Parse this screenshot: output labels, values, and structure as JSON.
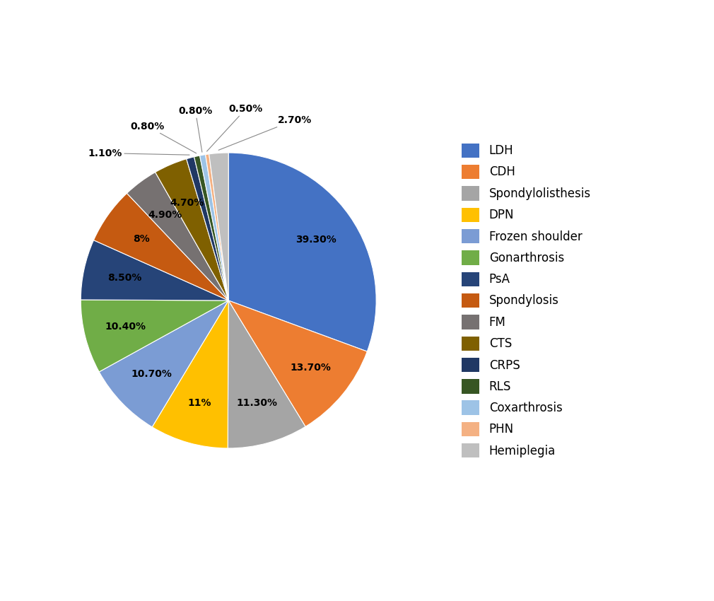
{
  "chart_data": {
    "type": "pie",
    "categories": [
      "LDH",
      "CDH",
      "Spondylolisthesis",
      "DPN",
      "Frozen shoulder",
      "Gonarthrosis",
      "PsA",
      "Spondylosis",
      "FM",
      "CTS",
      "CRPS",
      "RLS",
      "Coxarthrosis",
      "PHN",
      "Hemiplegia"
    ],
    "values": [
      39.3,
      13.7,
      11.3,
      11.0,
      10.7,
      10.4,
      8.5,
      8.0,
      4.9,
      4.7,
      1.1,
      0.8,
      0.8,
      0.5,
      2.7
    ],
    "value_labels": [
      "39.30%",
      "13.70%",
      "11.30%",
      "11%",
      "10.70%",
      "10.40%",
      "8.50%",
      "8%",
      "4.90%",
      "4.70%",
      "1.10%",
      "0.80%",
      "0.80%",
      "0.50%",
      "2.70%"
    ],
    "colors": [
      "#4472C4",
      "#ED7D31",
      "#A5A5A5",
      "#FFC000",
      "#7B9CD4",
      "#70AD47",
      "#264478",
      "#C55A11",
      "#767171",
      "#7F6000",
      "#203864",
      "#375623",
      "#9DC3E6",
      "#F4B183",
      "#BFBFBF"
    ],
    "data_labels": true,
    "legend": "center left"
  }
}
